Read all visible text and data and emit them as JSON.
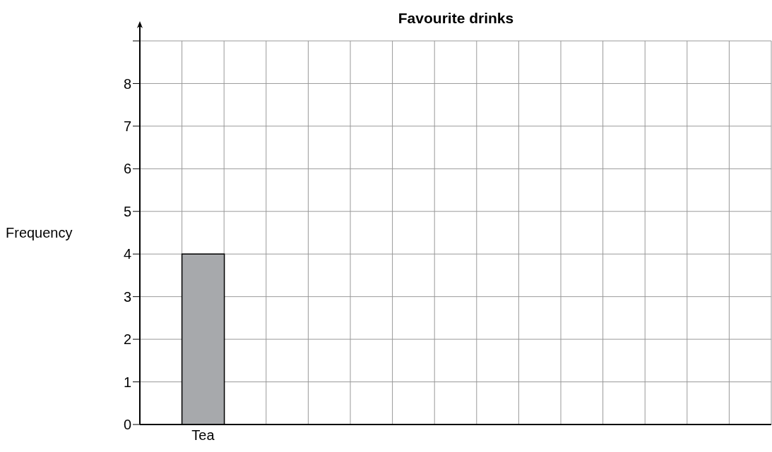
{
  "chart_data": {
    "type": "bar",
    "title": "Favourite drinks",
    "ylabel": "Frequency",
    "categories": [
      null,
      "Tea",
      null,
      null,
      null,
      null,
      null,
      null,
      null,
      null,
      null,
      null,
      null,
      null,
      null
    ],
    "values": [
      null,
      4,
      null,
      null,
      null,
      null,
      null,
      null,
      null,
      null,
      null,
      null,
      null,
      null,
      null
    ],
    "color": "#a7a9ac",
    "ylim": [
      0,
      9
    ],
    "yticks": [
      0,
      1,
      2,
      3,
      4,
      5,
      6,
      7,
      8,
      {
        "value": 9,
        "label": null
      }
    ],
    "grid": true
  }
}
